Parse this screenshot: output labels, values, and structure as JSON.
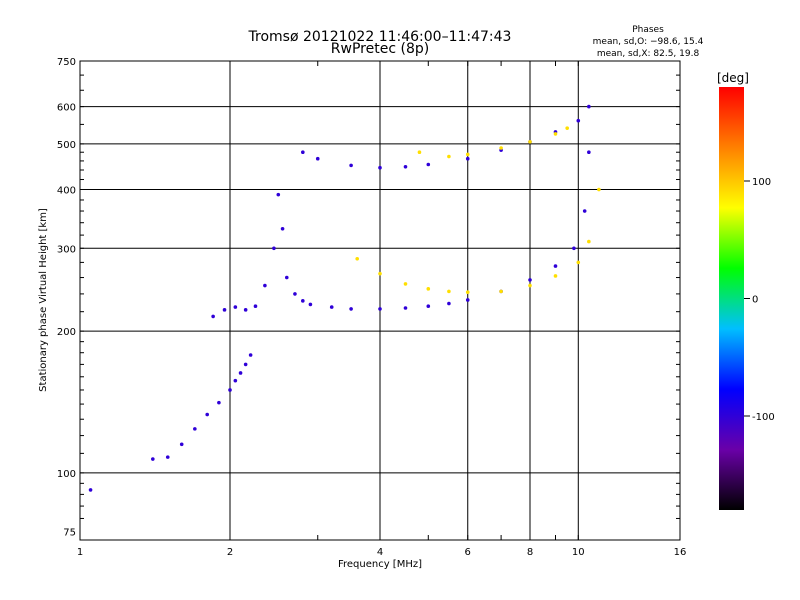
{
  "chart_data": {
    "type": "scatter",
    "title": "Tromsø 20121022 11:46:00–11:47:43",
    "subtitle": "RwPretec (8p)",
    "xlabel": "Frequency [MHz]",
    "ylabel": "Stationary phase Virtual Height [km]",
    "x_scale": "log",
    "y_scale": "log",
    "xlim": [
      1,
      16
    ],
    "ylim": [
      72,
      750
    ],
    "x_ticks": [
      1,
      2,
      4,
      6,
      8,
      10,
      16
    ],
    "y_ticks": [
      75,
      100,
      200,
      300,
      400,
      500,
      600,
      750
    ],
    "grid": true,
    "phase_info": {
      "title": "Phases",
      "line_o": "mean, sd,O: −98.6, 15.4",
      "line_x": "mean, sd,X:  82.5, 19.8"
    },
    "colorbar": {
      "label": "[deg]",
      "range": [
        -180,
        180
      ],
      "ticks": [
        100,
        0,
        -100
      ],
      "colors": [
        "#000000",
        "#6a00a8",
        "#0000ff",
        "#00bfff",
        "#00ff00",
        "#ffff00",
        "#ff8000",
        "#ff0000"
      ]
    },
    "series": [
      {
        "phase": -100,
        "x": [
          1.05,
          1.4,
          1.5,
          1.6,
          1.7,
          1.8,
          1.9,
          2.0,
          2.05,
          2.1,
          2.15,
          2.2
        ],
        "y": [
          92,
          107,
          108,
          115,
          124,
          133,
          141,
          150,
          157,
          163,
          170,
          178
        ]
      },
      {
        "phase": -100,
        "x": [
          1.85,
          1.95,
          2.05,
          2.15,
          2.25,
          2.35,
          2.45,
          2.5,
          2.55,
          2.6,
          2.7,
          2.8
        ],
        "y": [
          215,
          222,
          225,
          222,
          226,
          250,
          300,
          390,
          330,
          260,
          240,
          232
        ]
      },
      {
        "phase": -100,
        "x": [
          2.9,
          3.2,
          3.5,
          4.0,
          4.5,
          5.0,
          5.5,
          6.0,
          7.0,
          8.0,
          9.0,
          9.8,
          10.3,
          10.5
        ],
        "y": [
          228,
          225,
          223,
          223,
          224,
          226,
          229,
          233,
          243,
          257,
          275,
          300,
          360,
          480
        ]
      },
      {
        "phase": -100,
        "x": [
          2.8,
          3.0,
          3.5,
          4.0,
          4.5,
          5.0,
          6.0,
          7.0,
          8.0,
          9.0,
          10.0,
          10.5
        ],
        "y": [
          480,
          465,
          450,
          445,
          447,
          452,
          465,
          485,
          505,
          530,
          560,
          600
        ]
      },
      {
        "phase": 90,
        "x": [
          3.6,
          4.0,
          4.5,
          5.0,
          5.5,
          6.0,
          7.0,
          8.0,
          9.0,
          10.0,
          10.5,
          11.0
        ],
        "y": [
          285,
          265,
          252,
          246,
          243,
          242,
          243,
          250,
          262,
          280,
          310,
          400
        ]
      },
      {
        "phase": 90,
        "x": [
          4.8,
          5.5,
          6.0,
          7.0,
          8.0,
          9.0,
          9.5
        ],
        "y": [
          480,
          470,
          475,
          490,
          505,
          525,
          540
        ]
      }
    ]
  }
}
